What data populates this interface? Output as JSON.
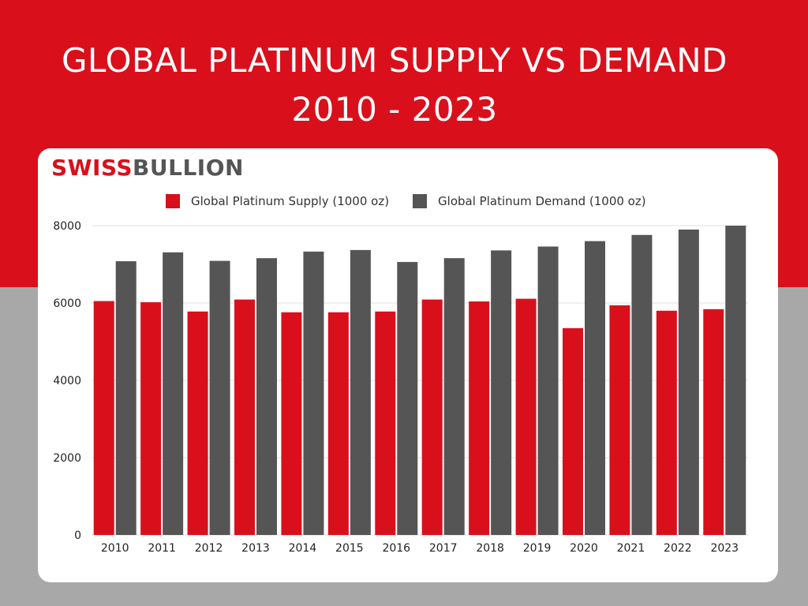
{
  "title": {
    "line1": "GLOBAL PLATINUM SUPPLY VS DEMAND",
    "line2": "2010 - 2023"
  },
  "brand": {
    "part1": "SWISS",
    "part2": "BULLION"
  },
  "colors": {
    "background_top": "#d9101c",
    "background_bottom": "#a8a8a8",
    "supply": "#d9101c",
    "demand": "#555555",
    "grid": "#e0e0e0"
  },
  "chart_data": {
    "type": "bar",
    "categories": [
      "2010",
      "2011",
      "2012",
      "2013",
      "2014",
      "2015",
      "2016",
      "2017",
      "2018",
      "2019",
      "2020",
      "2021",
      "2022",
      "2023"
    ],
    "series": [
      {
        "name": "Global Platinum Supply (1000 oz)",
        "color": "#d9101c",
        "values": [
          6050,
          6020,
          5780,
          6090,
          5760,
          5760,
          5780,
          6090,
          6040,
          6110,
          5350,
          5940,
          5800,
          5840
        ]
      },
      {
        "name": "Global Platinum Demand (1000 oz)",
        "color": "#555555",
        "values": [
          7080,
          7310,
          7090,
          7160,
          7330,
          7370,
          7060,
          7160,
          7360,
          7460,
          7600,
          7760,
          7900,
          8000
        ]
      }
    ],
    "ylim": [
      0,
      8000
    ],
    "yticks": [
      "0",
      "2000",
      "4000",
      "6000",
      "8000"
    ],
    "grid": true,
    "legend_position": "top"
  }
}
